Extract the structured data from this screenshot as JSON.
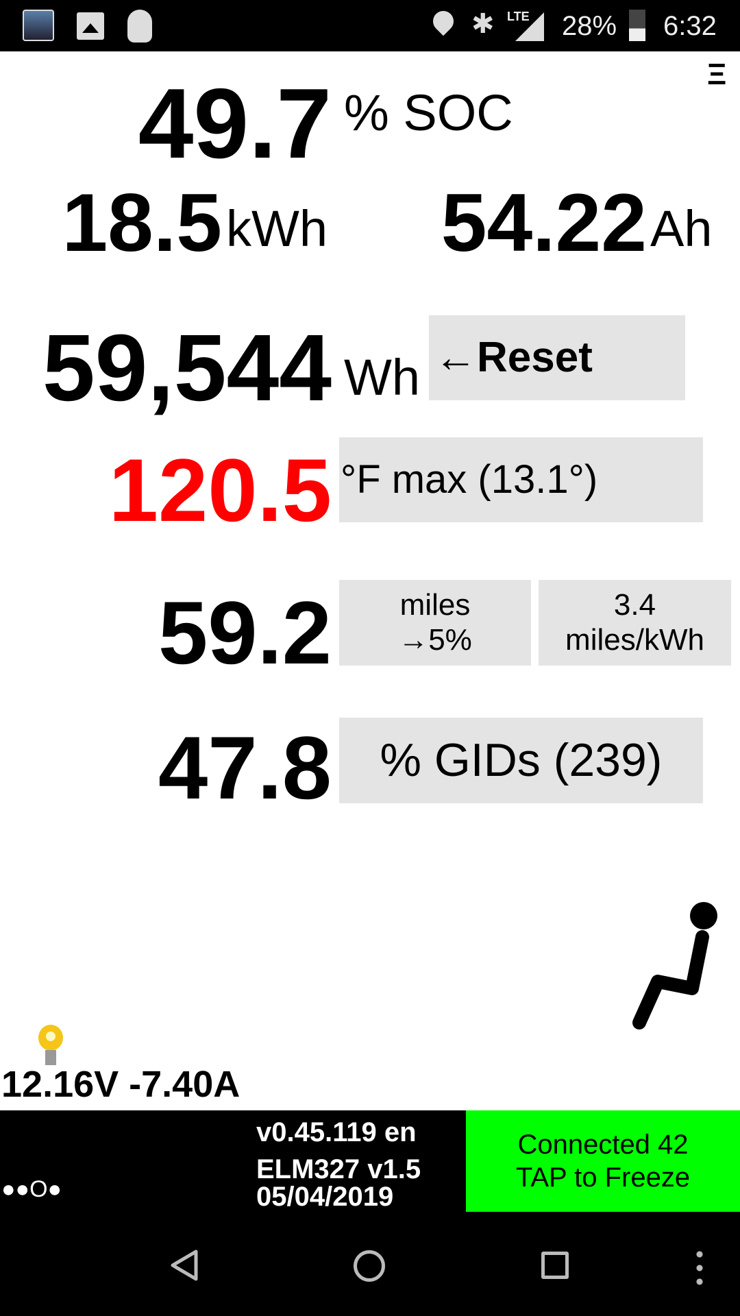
{
  "status_bar": {
    "battery": "28%",
    "time": "6:32",
    "network": "LTE",
    "icons": [
      "leafspy-app-icon",
      "image-icon",
      "plug-icon",
      "location-icon",
      "bluetooth-icon",
      "signal-icon",
      "battery-icon"
    ]
  },
  "menu_icon": "Ξ",
  "soc": {
    "value": "49.7",
    "unit": "% SOC"
  },
  "energy": {
    "value": "18.5",
    "unit": "kWh"
  },
  "capacity": {
    "value": "54.22",
    "unit": "Ah"
  },
  "wh": {
    "value": "59,544",
    "unit": "Wh",
    "reset_label": "←Reset"
  },
  "temp": {
    "value": "120.5",
    "label": "°F max (13.1°)",
    "color": "#ff0000"
  },
  "range": {
    "value": "59.2",
    "label1": "miles",
    "label2": "→5%",
    "eff1": "3.4",
    "eff2": "miles/kWh"
  },
  "gids": {
    "value": "47.8",
    "label": "% GIDs (239)"
  },
  "aux": {
    "text": "12.16V -7.40A"
  },
  "footer": {
    "dots": "●●O●",
    "version": "v0.45.119 en",
    "adapter": "ELM327 v1.5",
    "date": "05/04/2019",
    "conn1": "Connected 42",
    "conn2": "TAP to Freeze",
    "conn_color": "#00ff00"
  }
}
